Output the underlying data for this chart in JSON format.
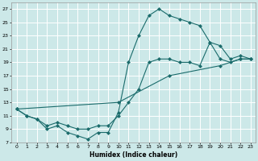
{
  "xlabel": "Humidex (Indice chaleur)",
  "bg_color": "#cce8e8",
  "grid_color": "#ffffff",
  "line_color": "#1a6b6b",
  "xlim": [
    -0.5,
    23.5
  ],
  "ylim": [
    7,
    28
  ],
  "xticks": [
    0,
    1,
    2,
    3,
    4,
    5,
    6,
    7,
    8,
    9,
    10,
    11,
    12,
    13,
    14,
    15,
    16,
    17,
    18,
    19,
    20,
    21,
    22,
    23
  ],
  "yticks": [
    7,
    9,
    11,
    13,
    15,
    17,
    19,
    21,
    23,
    25,
    27
  ],
  "line1_x": [
    0,
    1,
    2,
    3,
    4,
    5,
    6,
    7,
    8,
    9,
    10,
    11,
    12,
    13,
    14,
    15,
    16,
    17,
    18,
    19,
    20,
    21,
    22,
    23
  ],
  "line1_y": [
    12,
    11,
    10.5,
    9,
    9.5,
    8.5,
    8,
    7.5,
    8.5,
    8.5,
    11.5,
    19,
    23,
    26,
    27,
    26,
    25.5,
    25,
    24.5,
    22,
    19.5,
    19,
    19.5,
    19.5
  ],
  "line2_x": [
    0,
    1,
    2,
    3,
    4,
    5,
    6,
    7,
    8,
    9,
    10,
    11,
    12,
    13,
    14,
    15,
    16,
    17,
    18,
    19,
    20,
    21,
    22,
    23
  ],
  "line2_y": [
    12,
    11,
    10.5,
    9.5,
    10,
    9.5,
    9,
    9,
    9.5,
    9.5,
    11,
    13,
    15,
    19,
    19.5,
    19.5,
    19,
    19,
    18.5,
    22,
    21.5,
    19.5,
    20,
    19.5
  ],
  "line3_x": [
    0,
    10,
    15,
    20,
    22,
    23
  ],
  "line3_y": [
    12,
    13,
    17,
    18.5,
    19.5,
    19.5
  ]
}
